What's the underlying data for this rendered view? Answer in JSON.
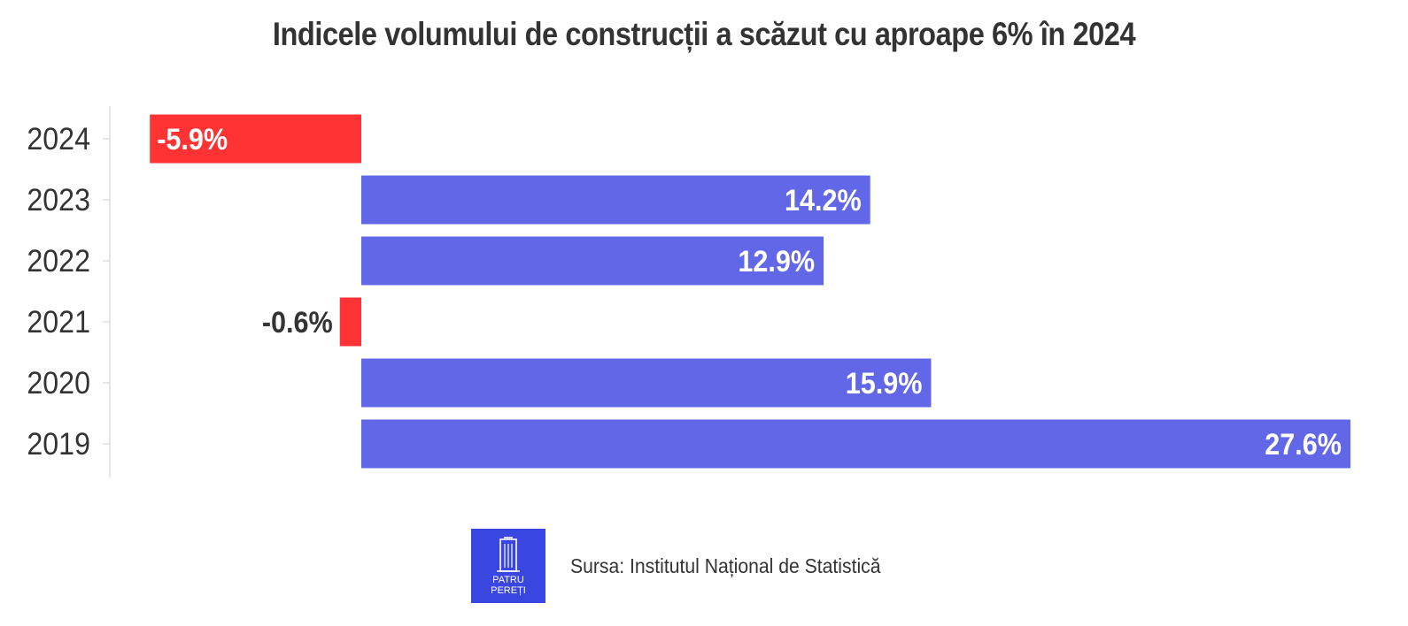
{
  "title": "Indicele volumului de construcții a scăzut cu aproape 6% în 2024",
  "source": "Sursa: Institutul Național de Statistică",
  "logo": {
    "line1": "PATRU",
    "line2": "PEREȚI",
    "icon": "building-icon"
  },
  "colors": {
    "positive": "#6267e8",
    "negative": "#ff3333",
    "logo_bg": "#3a46e0",
    "text": "#333333"
  },
  "chart_data": {
    "type": "bar",
    "orientation": "horizontal",
    "categories": [
      "2024",
      "2023",
      "2022",
      "2021",
      "2020",
      "2019"
    ],
    "values": [
      -5.9,
      14.2,
      12.9,
      -0.6,
      15.9,
      27.6
    ],
    "data_labels": [
      "-5.9%",
      "14.2%",
      "12.9%",
      "-0.6%",
      "15.9%",
      "27.6%"
    ],
    "xlim": [
      -6.0,
      27.6
    ],
    "grid": false,
    "xlabel": "",
    "ylabel": ""
  }
}
